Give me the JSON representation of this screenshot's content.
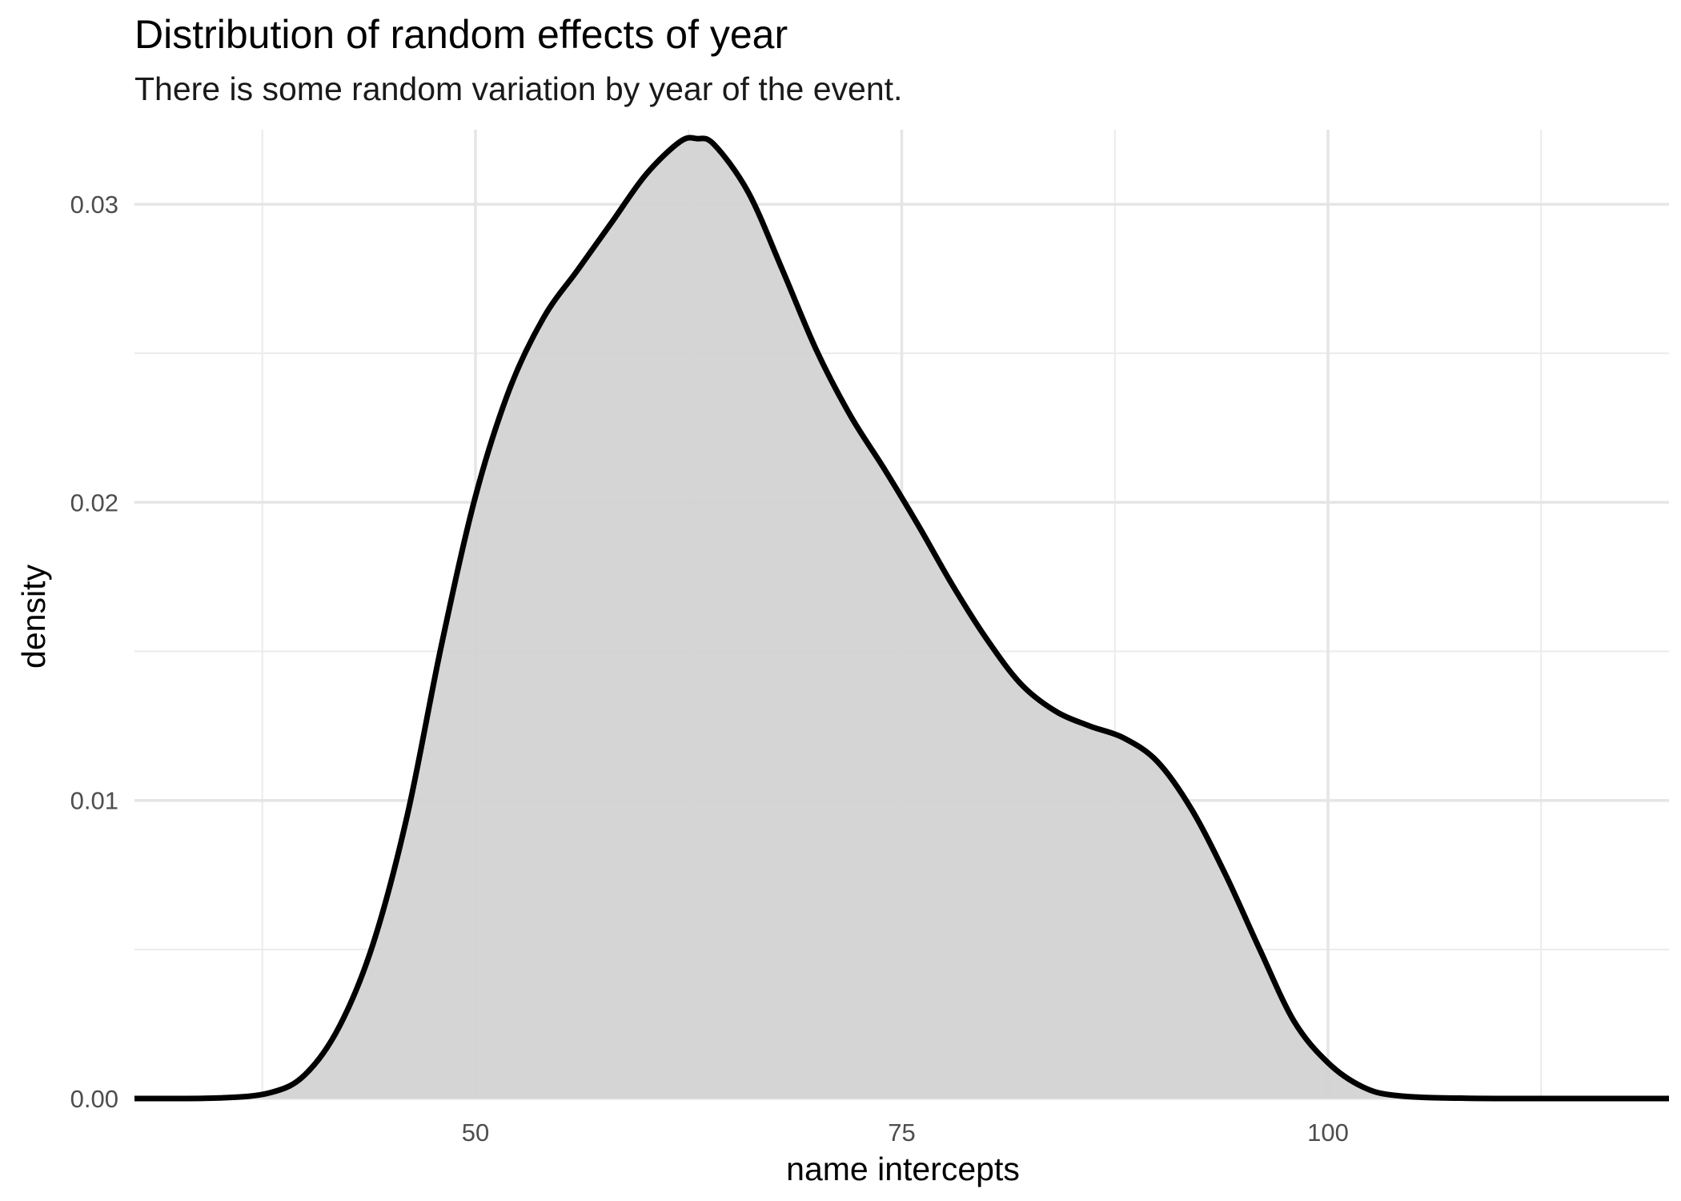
{
  "chart_data": {
    "type": "area",
    "title": "Distribution of random effects of year",
    "subtitle": "There is some random variation by year of the event.",
    "xlabel": "name intercepts",
    "ylabel": "density",
    "xlim": [
      30,
      120
    ],
    "ylim": [
      0,
      0.0325
    ],
    "x_ticks": [
      {
        "value": 50,
        "label": "50"
      },
      {
        "value": 75,
        "label": "75"
      },
      {
        "value": 100,
        "label": "100"
      }
    ],
    "y_ticks": [
      {
        "value": 0.0,
        "label": "0.00"
      },
      {
        "value": 0.01,
        "label": "0.01"
      },
      {
        "value": 0.02,
        "label": "0.02"
      },
      {
        "value": 0.03,
        "label": "0.03"
      }
    ],
    "x_minor_gridlines": [
      37.5,
      62.5,
      87.5,
      112.5
    ],
    "y_minor_gridlines": [
      0.005,
      0.015,
      0.025
    ],
    "grid": true,
    "fill_color": "#d3d3d3",
    "line_color": "#000000",
    "series": [
      {
        "name": "density",
        "x": [
          30,
          35,
          38,
          40,
          42,
          44,
          46,
          48,
          50,
          52,
          54,
          56,
          58,
          60,
          62,
          63,
          64,
          66,
          68,
          70,
          72,
          74,
          76,
          78,
          80,
          82,
          84,
          86,
          88,
          90,
          92,
          94,
          96,
          98,
          100,
          102,
          104,
          108,
          115,
          120
        ],
        "y": [
          0.0,
          2e-05,
          0.0002,
          0.0008,
          0.0024,
          0.0052,
          0.0095,
          0.0152,
          0.0202,
          0.0238,
          0.0262,
          0.0278,
          0.0294,
          0.031,
          0.0321,
          0.0322,
          0.032,
          0.0304,
          0.0278,
          0.0251,
          0.0229,
          0.0211,
          0.0192,
          0.0172,
          0.0154,
          0.0139,
          0.013,
          0.0125,
          0.0121,
          0.0113,
          0.0097,
          0.0075,
          0.005,
          0.0026,
          0.0012,
          0.0004,
          0.0001,
          1e-05,
          0.0,
          0.0
        ]
      }
    ]
  }
}
